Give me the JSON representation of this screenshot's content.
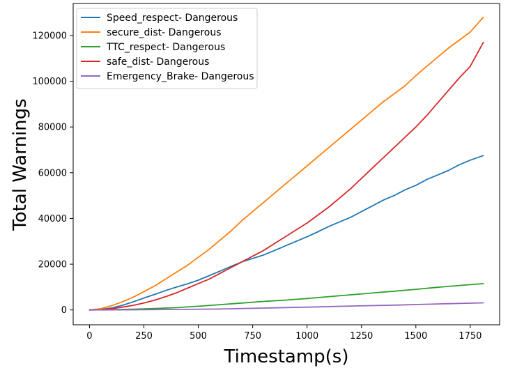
{
  "chart_data": {
    "type": "line",
    "title": "",
    "xlabel": "Timestamp(s)",
    "ylabel": "Total Warnings",
    "xlim": [
      -75,
      1885
    ],
    "ylim": [
      -6500,
      134000
    ],
    "x_ticks": [
      0,
      250,
      500,
      750,
      1000,
      1250,
      1500,
      1750
    ],
    "y_ticks": [
      0,
      20000,
      40000,
      60000,
      80000,
      100000,
      120000
    ],
    "grid": false,
    "legend": "upper-left",
    "series": [
      {
        "name": "Speed_respect- Dangerous",
        "color": "#1f77b4",
        "x": [
          0,
          50,
          100,
          150,
          200,
          250,
          300,
          350,
          400,
          450,
          500,
          550,
          600,
          650,
          700,
          750,
          800,
          850,
          900,
          950,
          1000,
          1050,
          1100,
          1150,
          1200,
          1250,
          1300,
          1350,
          1400,
          1450,
          1500,
          1550,
          1600,
          1650,
          1700,
          1750,
          1810
        ],
        "y": [
          0,
          200,
          800,
          2000,
          3500,
          5200,
          6800,
          8500,
          10000,
          11400,
          13000,
          15000,
          17000,
          19000,
          21000,
          22500,
          24000,
          26000,
          28000,
          30000,
          32000,
          34200,
          36500,
          38500,
          40500,
          43000,
          45500,
          48000,
          50000,
          52500,
          54500,
          57000,
          59000,
          61000,
          63500,
          65500,
          67500
        ]
      },
      {
        "name": "secure_dist- Dangerous",
        "color": "#ff7f0e",
        "x": [
          0,
          50,
          100,
          150,
          200,
          250,
          300,
          350,
          400,
          450,
          500,
          550,
          600,
          650,
          700,
          750,
          800,
          850,
          900,
          950,
          1000,
          1050,
          1100,
          1150,
          1200,
          1250,
          1300,
          1350,
          1400,
          1450,
          1500,
          1550,
          1600,
          1650,
          1700,
          1750,
          1810
        ],
        "y": [
          0,
          500,
          1800,
          3500,
          5500,
          8000,
          10500,
          13500,
          16500,
          19500,
          23000,
          26500,
          30500,
          34500,
          39000,
          43000,
          47000,
          51000,
          55000,
          59000,
          63000,
          67000,
          71000,
          75000,
          79000,
          83000,
          87000,
          91000,
          94500,
          98000,
          102500,
          106500,
          110500,
          114500,
          118000,
          121500,
          128000
        ]
      },
      {
        "name": "TTC_respect- Dangerous",
        "color": "#2ca02c",
        "x": [
          0,
          100,
          200,
          300,
          400,
          500,
          600,
          700,
          800,
          900,
          1000,
          1100,
          1200,
          1300,
          1400,
          1500,
          1600,
          1700,
          1810
        ],
        "y": [
          0,
          100,
          300,
          600,
          1000,
          1600,
          2300,
          3000,
          3700,
          4300,
          5000,
          5800,
          6600,
          7400,
          8200,
          9000,
          9900,
          10700,
          11500
        ]
      },
      {
        "name": "safe_dist- Dangerous",
        "color": "#d62728",
        "x": [
          0,
          50,
          100,
          150,
          200,
          250,
          300,
          350,
          400,
          450,
          500,
          550,
          600,
          650,
          700,
          750,
          800,
          850,
          900,
          950,
          1000,
          1050,
          1100,
          1150,
          1200,
          1250,
          1300,
          1350,
          1400,
          1450,
          1500,
          1550,
          1600,
          1650,
          1700,
          1750,
          1810
        ],
        "y": [
          0,
          100,
          500,
          1200,
          2000,
          3000,
          4300,
          5800,
          7500,
          9500,
          11500,
          13500,
          16000,
          18500,
          21000,
          23500,
          26000,
          29000,
          32000,
          35000,
          38000,
          41500,
          45000,
          49000,
          53000,
          57500,
          62000,
          66500,
          71000,
          75500,
          80000,
          85000,
          90500,
          96000,
          101500,
          106500,
          117000
        ]
      },
      {
        "name": "Emergency_Brake- Dangerous",
        "color": "#9467bd",
        "x": [
          0,
          200,
          400,
          600,
          800,
          1000,
          1200,
          1400,
          1600,
          1810
        ],
        "y": [
          0,
          50,
          200,
          400,
          800,
          1200,
          1700,
          2100,
          2600,
          3100
        ]
      }
    ]
  }
}
